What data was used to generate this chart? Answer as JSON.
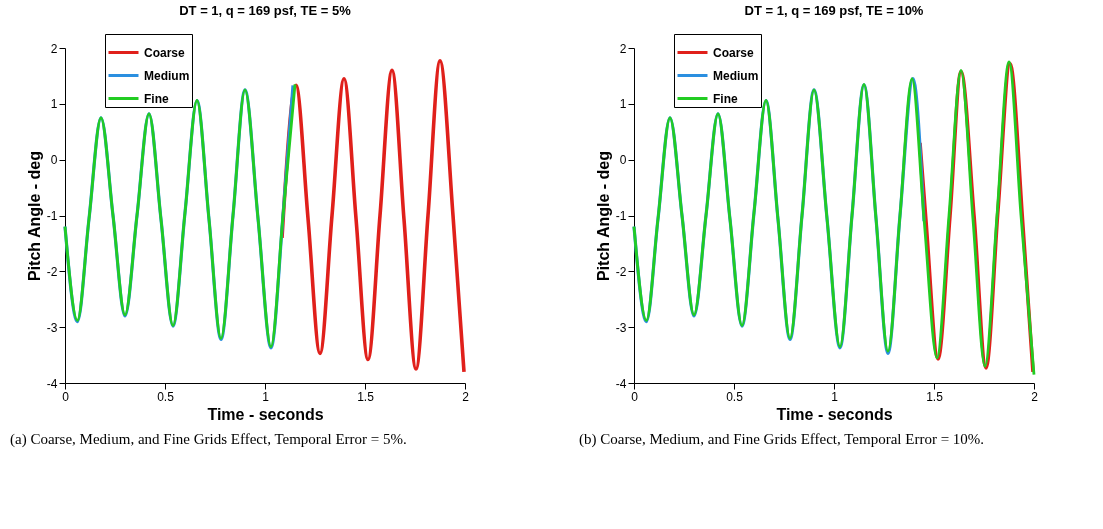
{
  "chart_data": [
    {
      "type": "line",
      "title": "DT = 1, q = 169 psf, TE = 5%",
      "xlabel": "Time - seconds",
      "ylabel": "Pitch Angle - deg",
      "xlim": [
        0,
        2
      ],
      "ylim": [
        -4,
        2
      ],
      "xticks": [
        0,
        0.5,
        1,
        1.5,
        2
      ],
      "yticks": [
        -4,
        -3,
        -2,
        -1,
        0,
        1,
        2
      ],
      "legend": "top left",
      "annotations": [
        "(a) Coarse, Medium, and Fine Grids Effect, Temporal Error = 5%."
      ],
      "series": [
        {
          "name": "Coarse",
          "color": "#e0201b",
          "x": [
            1.085,
            1.155,
            1.215,
            1.275,
            1.335,
            1.395,
            1.455,
            1.515,
            1.575,
            1.635,
            1.695,
            1.755,
            1.815,
            1.875,
            1.94,
            1.995
          ],
          "values": [
            -1.4,
            1.33,
            -1.05,
            -3.47,
            -1.0,
            1.45,
            -1.05,
            -3.58,
            -1.0,
            1.6,
            -1.07,
            -3.75,
            -1.0,
            1.77,
            -1.0,
            -3.8
          ]
        },
        {
          "name": "Medium",
          "color": "#2a8fe0",
          "x": [
            0,
            0.062,
            0.12,
            0.18,
            0.24,
            0.3,
            0.36,
            0.42,
            0.48,
            0.54,
            0.6,
            0.66,
            0.72,
            0.78,
            0.84,
            0.9,
            0.965,
            1.03,
            1.09,
            1.14
          ],
          "values": [
            -1.2,
            -2.9,
            -1.06,
            0.75,
            -1.0,
            -2.8,
            -1.0,
            0.82,
            -1.07,
            -2.98,
            -0.95,
            1.06,
            -1.07,
            -3.22,
            -1.0,
            1.25,
            -1.05,
            -3.37,
            -1.0,
            1.33
          ]
        },
        {
          "name": "Fine",
          "color": "#22cc22",
          "x": [
            0,
            0.062,
            0.12,
            0.18,
            0.24,
            0.3,
            0.36,
            0.42,
            0.48,
            0.54,
            0.6,
            0.66,
            0.72,
            0.78,
            0.84,
            0.9,
            0.965,
            1.03,
            1.09,
            1.15
          ],
          "values": [
            -1.2,
            -2.88,
            -1.06,
            0.75,
            -1.0,
            -2.78,
            -1.0,
            0.82,
            -1.07,
            -2.97,
            -0.95,
            1.06,
            -1.07,
            -3.2,
            -1.0,
            1.25,
            -1.05,
            -3.35,
            -1.0,
            1.35
          ]
        }
      ]
    },
    {
      "type": "line",
      "title": "DT = 1, q = 169 psf, TE = 10%",
      "xlabel": "Time - seconds",
      "ylabel": "Pitch Angle - deg",
      "xlim": [
        0,
        2
      ],
      "ylim": [
        -4,
        2
      ],
      "xticks": [
        0,
        0.5,
        1,
        1.5,
        2
      ],
      "yticks": [
        -4,
        -3,
        -2,
        -1,
        0,
        1,
        2
      ],
      "legend": "top left",
      "annotations": [
        "(b) Coarse, Medium, and Fine Grids Effect, Temporal Error = 10%."
      ],
      "series": [
        {
          "name": "Coarse",
          "color": "#e0201b",
          "x": [
            1.43,
            1.46,
            1.52,
            1.58,
            1.635,
            1.7,
            1.76,
            1.82,
            1.88,
            1.945,
            1.995
          ],
          "values": [
            0.3,
            -1.1,
            -3.57,
            -1.0,
            1.58,
            -1.0,
            -3.73,
            -0.9,
            1.72,
            -1.2,
            -3.8
          ]
        },
        {
          "name": "Medium",
          "color": "#2a8fe0",
          "x": [
            0,
            0.062,
            0.12,
            0.18,
            0.24,
            0.3,
            0.36,
            0.42,
            0.48,
            0.54,
            0.6,
            0.66,
            0.72,
            0.78,
            0.84,
            0.9,
            0.965,
            1.03,
            1.09,
            1.15,
            1.21,
            1.27,
            1.33,
            1.395,
            1.45
          ],
          "values": [
            -1.2,
            -2.9,
            -1.06,
            0.75,
            -1.0,
            -2.8,
            -1.0,
            0.82,
            -1.07,
            -2.98,
            -0.95,
            1.06,
            -1.07,
            -3.22,
            -1.0,
            1.25,
            -1.05,
            -3.37,
            -1.0,
            1.34,
            -1.05,
            -3.47,
            -1.0,
            1.45,
            -1.1
          ]
        },
        {
          "name": "Fine",
          "color": "#22cc22",
          "x": [
            0,
            0.062,
            0.12,
            0.18,
            0.24,
            0.3,
            0.36,
            0.42,
            0.48,
            0.54,
            0.6,
            0.66,
            0.72,
            0.78,
            0.84,
            0.9,
            0.965,
            1.03,
            1.09,
            1.15,
            1.21,
            1.27,
            1.33,
            1.39,
            1.45,
            1.515,
            1.575,
            1.635,
            1.695,
            1.755,
            1.815,
            1.875,
            1.935,
            2.0
          ],
          "values": [
            -1.2,
            -2.88,
            -1.06,
            0.75,
            -1.0,
            -2.78,
            -1.0,
            0.82,
            -1.07,
            -2.97,
            -0.95,
            1.06,
            -1.07,
            -3.2,
            -1.0,
            1.25,
            -1.05,
            -3.35,
            -1.0,
            1.35,
            -1.05,
            -3.43,
            -1.0,
            1.45,
            -1.05,
            -3.55,
            -1.0,
            1.6,
            -1.07,
            -3.7,
            -1.0,
            1.75,
            -1.0,
            -3.85
          ]
        }
      ]
    }
  ]
}
